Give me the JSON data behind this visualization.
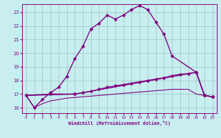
{
  "background_color": "#c8eef0",
  "line_color": "#800080",
  "grid_color": "#a0ccc8",
  "xlabel": "Windchill (Refroidissement éolien,°C)",
  "xlim": [
    -0.5,
    23.5
  ],
  "ylim": [
    15.6,
    23.6
  ],
  "yticks": [
    16,
    17,
    18,
    19,
    20,
    21,
    22,
    23
  ],
  "xticks": [
    0,
    1,
    2,
    3,
    4,
    5,
    6,
    7,
    8,
    9,
    10,
    11,
    12,
    13,
    14,
    15,
    16,
    17,
    18,
    19,
    20,
    21,
    22,
    23
  ],
  "series": [
    {
      "x": [
        0,
        1,
        2,
        3,
        4,
        5,
        6,
        7,
        8,
        9,
        10,
        11,
        12,
        13,
        14,
        15,
        16,
        17,
        18,
        21,
        22,
        23
      ],
      "y": [
        16.9,
        16.0,
        16.6,
        17.1,
        17.5,
        18.3,
        19.6,
        20.5,
        21.8,
        22.2,
        22.8,
        22.5,
        22.8,
        23.2,
        23.5,
        23.2,
        22.3,
        21.4,
        19.8,
        18.6,
        16.9,
        16.8
      ],
      "marker": "D",
      "markersize": 2.5,
      "linewidth": 1.0
    },
    {
      "x": [
        0,
        3,
        6,
        21,
        22,
        23
      ],
      "y": [
        16.9,
        17.0,
        17.0,
        18.6,
        16.9,
        16.8
      ],
      "marker": "D",
      "markersize": 2.5,
      "linewidth": 1.0
    },
    {
      "x": [
        0,
        6,
        7,
        8,
        9,
        10,
        11,
        12,
        13,
        14,
        15,
        16,
        17,
        18,
        19,
        20,
        21,
        22,
        23
      ],
      "y": [
        16.9,
        17.0,
        17.1,
        17.2,
        17.35,
        17.5,
        17.6,
        17.7,
        17.8,
        17.9,
        18.0,
        18.1,
        18.2,
        18.35,
        18.45,
        18.5,
        18.6,
        16.9,
        16.8
      ],
      "marker": "D",
      "markersize": 2.5,
      "linewidth": 1.0
    },
    {
      "x": [
        0,
        1,
        2,
        3,
        4,
        5,
        6,
        7,
        8,
        9,
        10,
        11,
        12,
        13,
        14,
        15,
        16,
        17,
        18,
        19,
        20,
        21,
        22,
        23
      ],
      "y": [
        16.9,
        16.0,
        16.3,
        16.5,
        16.6,
        16.7,
        16.75,
        16.8,
        16.85,
        16.9,
        16.95,
        17.0,
        17.05,
        17.1,
        17.15,
        17.2,
        17.25,
        17.3,
        17.35,
        17.35,
        17.35,
        17.0,
        16.9,
        16.8
      ],
      "marker": null,
      "markersize": 0,
      "linewidth": 0.8
    }
  ]
}
